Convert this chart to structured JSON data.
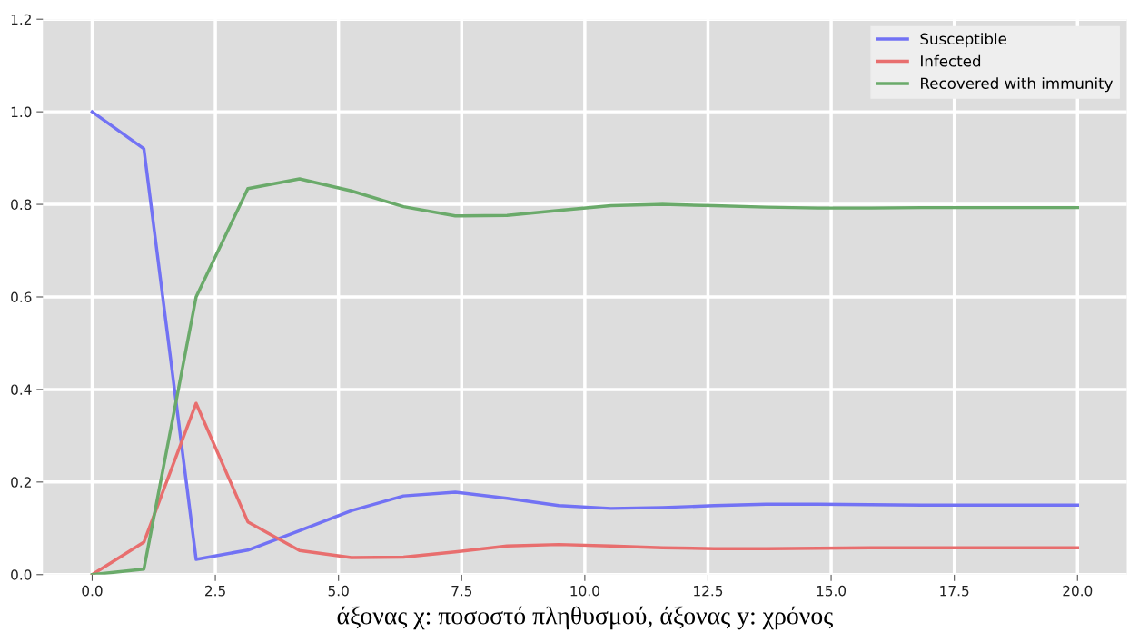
{
  "chart_data": {
    "type": "line",
    "xlabel": "άξονας χ: ποσοστό πληθυσμού, άξονας y: χρόνος",
    "x": [
      0,
      1.05,
      2.11,
      3.16,
      4.21,
      5.26,
      6.32,
      7.37,
      8.42,
      9.47,
      10.53,
      11.58,
      12.63,
      13.68,
      14.74,
      15.79,
      16.84,
      17.89,
      18.95,
      20
    ],
    "series": [
      {
        "name": "Susceptible",
        "color": "#7272f4",
        "values": [
          1.0,
          0.92,
          0.033,
          0.053,
          0.095,
          0.138,
          0.17,
          0.178,
          0.165,
          0.149,
          0.143,
          0.145,
          0.149,
          0.152,
          0.152,
          0.151,
          0.15,
          0.15,
          0.15,
          0.15
        ]
      },
      {
        "name": "Infected",
        "color": "#e86e6e",
        "values": [
          0,
          0.07,
          0.37,
          0.114,
          0.052,
          0.037,
          0.038,
          0.049,
          0.062,
          0.065,
          0.062,
          0.058,
          0.056,
          0.056,
          0.057,
          0.058,
          0.058,
          0.058,
          0.058,
          0.058
        ]
      },
      {
        "name": "Recovered with immunity",
        "color": "#6aaa6a",
        "values": [
          0,
          0.012,
          0.6,
          0.834,
          0.855,
          0.829,
          0.795,
          0.775,
          0.776,
          0.787,
          0.797,
          0.8,
          0.797,
          0.794,
          0.792,
          0.792,
          0.793,
          0.793,
          0.793,
          0.793
        ]
      }
    ],
    "xlim": [
      -1,
      21
    ],
    "xticks": [
      {
        "value": 0,
        "label": "0.0"
      },
      2.5,
      {
        "value": 5,
        "label": "5.0"
      },
      7.5,
      {
        "value": 10,
        "label": "10.0"
      },
      12.5,
      {
        "value": 15,
        "label": "15.0"
      },
      17.5,
      {
        "value": 20,
        "label": "20.0"
      }
    ],
    "ylim": [
      0,
      1.2
    ],
    "yticks": [
      {
        "value": 0,
        "label": "0.0"
      },
      0.2,
      0.4,
      0.6,
      0.8,
      {
        "value": 1,
        "label": "1.0"
      },
      1.2
    ],
    "grid": true,
    "legend": "top right",
    "line_style": "solid",
    "marker": "none"
  }
}
